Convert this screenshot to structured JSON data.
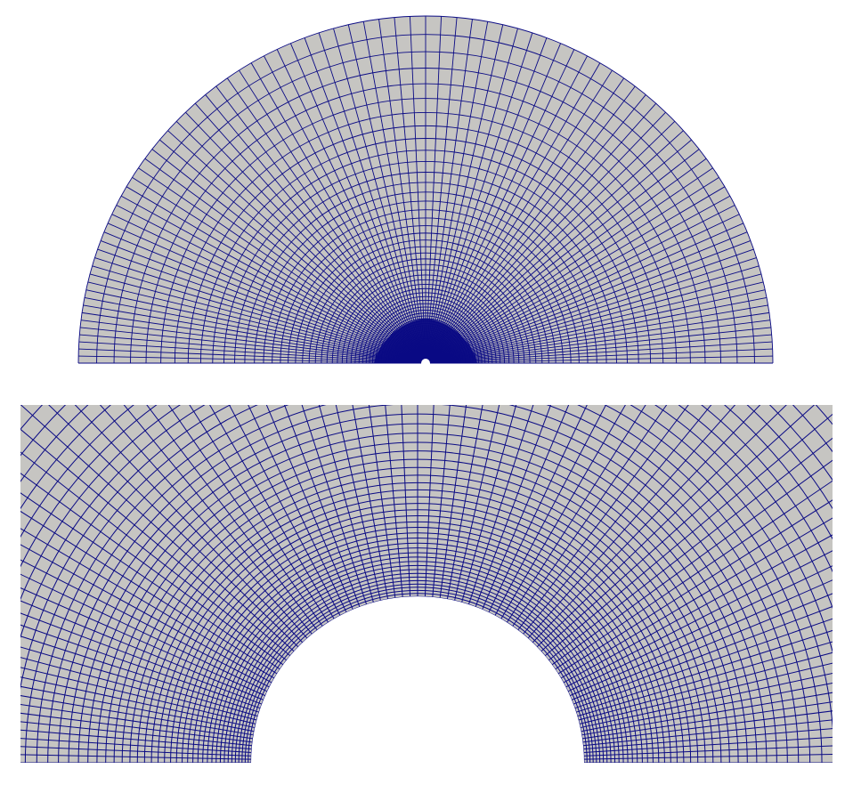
{
  "colors": {
    "background": "#ffffff",
    "mesh_face": "#c6c5c2",
    "mesh_line": "#0a0a84"
  },
  "panels": [
    {
      "id": "full-domain",
      "type": "half-annulus structured mesh, full view"
    },
    {
      "id": "zoom-near-hole",
      "type": "half-annulus structured mesh, zoomed near inner boundary"
    }
  ]
}
